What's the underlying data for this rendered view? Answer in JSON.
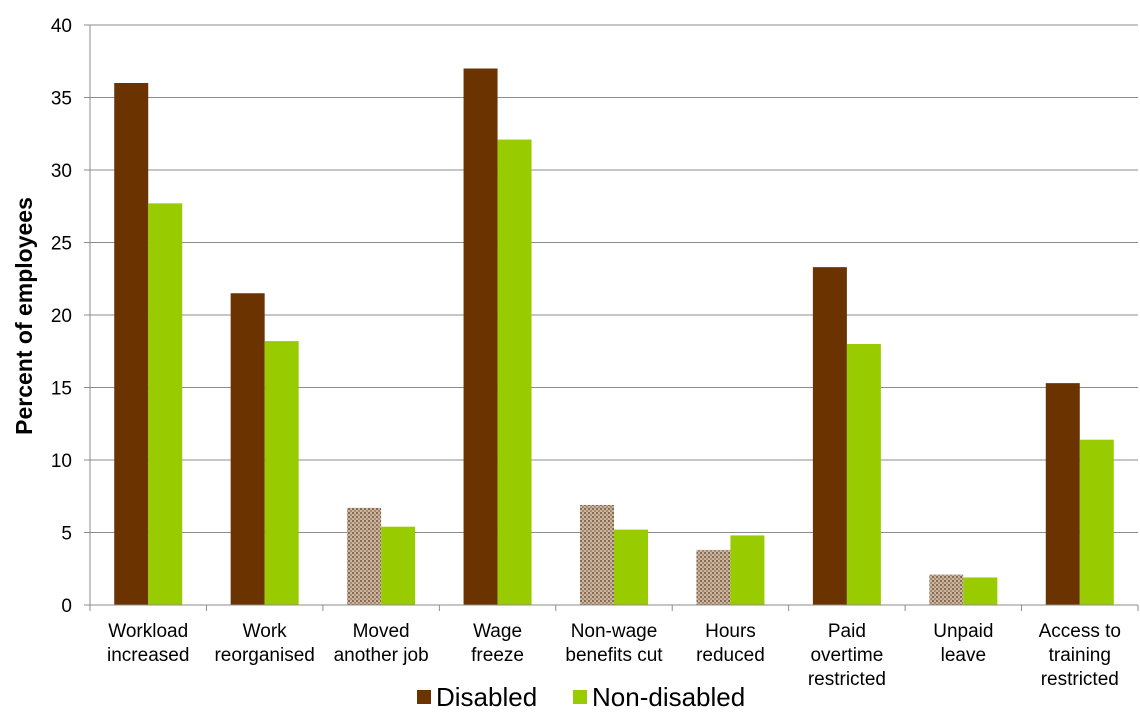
{
  "chart_data": {
    "type": "bar",
    "title": "",
    "xlabel": "",
    "ylabel": "Percent of employees",
    "ylim": [
      0,
      40
    ],
    "yticks": [
      0,
      5,
      10,
      15,
      20,
      25,
      30,
      35,
      40
    ],
    "grid": true,
    "legend_position": "bottom",
    "categories": [
      [
        "Workload",
        "increased"
      ],
      [
        "Work",
        "reorganised"
      ],
      [
        "Moved",
        "another job"
      ],
      [
        "Wage",
        "freeze"
      ],
      [
        "Non-wage",
        "benefits cut"
      ],
      [
        "Hours",
        "reduced"
      ],
      [
        "Paid",
        "overtime",
        "restricted"
      ],
      [
        "Unpaid",
        "leave"
      ],
      [
        "Access to",
        "training",
        "restricted"
      ]
    ],
    "series": [
      {
        "name": "Disabled",
        "color": "#6b3300",
        "values": [
          36.0,
          21.5,
          6.7,
          37.0,
          6.9,
          3.8,
          23.3,
          2.1,
          15.3
        ],
        "hatched": [
          false,
          false,
          true,
          false,
          true,
          true,
          false,
          true,
          false
        ]
      },
      {
        "name": "Non-disabled",
        "color": "#99cc00",
        "values": [
          27.7,
          18.2,
          5.4,
          32.1,
          5.2,
          4.8,
          18.0,
          1.9,
          11.4
        ]
      }
    ],
    "hatch_color": "#b59b83"
  }
}
